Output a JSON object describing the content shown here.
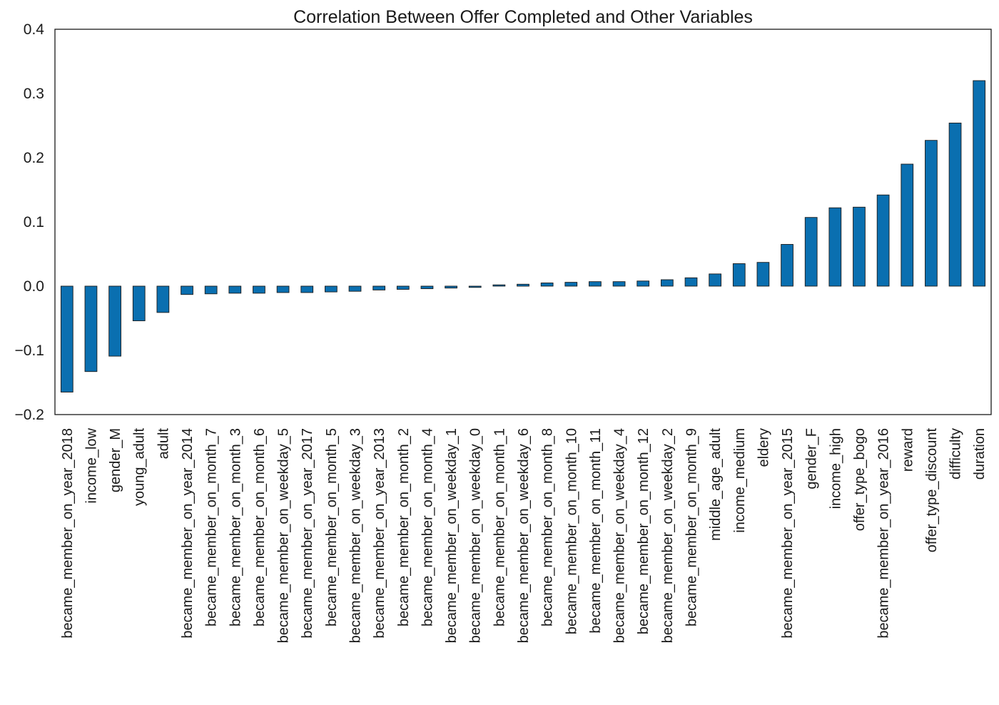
{
  "chart_data": {
    "type": "bar",
    "title": "Correlation Between Offer Completed and Other Variables",
    "xlabel": "",
    "ylabel": "",
    "ylim": [
      -0.2,
      0.4
    ],
    "yticks": [
      "0.4",
      "0.3",
      "0.2",
      "0.1",
      "0.0",
      "−0.1",
      "−0.2"
    ],
    "ytick_values": [
      0.4,
      0.3,
      0.2,
      0.1,
      0.0,
      -0.1,
      -0.2
    ],
    "grid": false,
    "bar_color": "#0a6fb0",
    "categories": [
      "became_member_on_year_2018",
      "income_low",
      "gender_M",
      "young_adult",
      "adult",
      "became_member_on_year_2014",
      "became_member_on_month_7",
      "became_member_on_month_3",
      "became_member_on_month_6",
      "became_member_on_weekday_5",
      "became_member_on_year_2017",
      "became_member_on_month_5",
      "became_member_on_weekday_3",
      "became_member_on_year_2013",
      "became_member_on_month_2",
      "became_member_on_month_4",
      "became_member_on_weekday_1",
      "became_member_on_weekday_0",
      "became_member_on_month_1",
      "became_member_on_weekday_6",
      "became_member_on_month_8",
      "became_member_on_month_10",
      "became_member_on_month_11",
      "became_member_on_weekday_4",
      "became_member_on_month_12",
      "became_member_on_weekday_2",
      "became_member_on_month_9",
      "middle_age_adult",
      "income_medium",
      "eldery",
      "became_member_on_year_2015",
      "gender_F",
      "income_high",
      "offer_type_bogo",
      "became_member_on_year_2016",
      "reward",
      "offer_type_discount",
      "difficulty",
      "duration"
    ],
    "values": [
      -0.165,
      -0.133,
      -0.109,
      -0.054,
      -0.041,
      -0.013,
      -0.012,
      -0.011,
      -0.011,
      -0.01,
      -0.01,
      -0.009,
      -0.008,
      -0.006,
      -0.005,
      -0.004,
      -0.003,
      -0.002,
      0.002,
      0.003,
      0.005,
      0.006,
      0.007,
      0.007,
      0.008,
      0.01,
      0.013,
      0.019,
      0.035,
      0.037,
      0.065,
      0.107,
      0.122,
      0.123,
      0.142,
      0.19,
      0.227,
      0.254,
      0.32
    ]
  }
}
